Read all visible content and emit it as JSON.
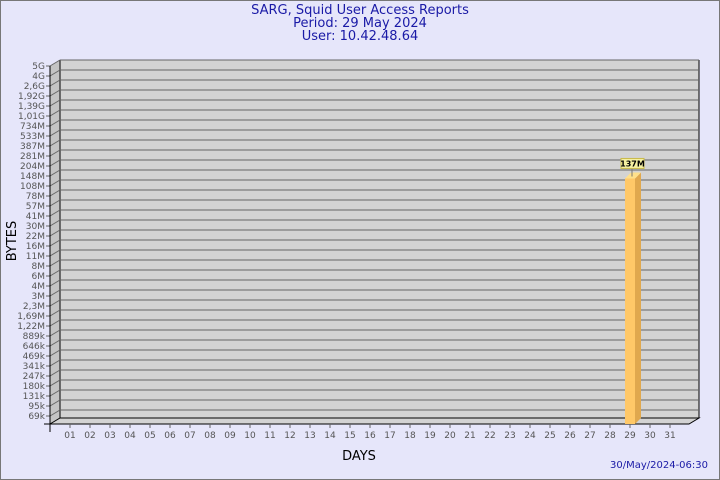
{
  "header": {
    "title": "SARG, Squid User Access Reports",
    "period": "Period: 29 May 2024",
    "user": "User: 10.42.48.64"
  },
  "footer": {
    "timestamp": "30/May/2024-06:30"
  },
  "colors": {
    "background": "#e6e6fa",
    "plot": "#d3d3d3",
    "bar": "#ffc868",
    "bar_side": "#e0a84e",
    "title": "#1a1aa6"
  },
  "chart_data": {
    "type": "bar",
    "title": "SARG, Squid User Access Reports",
    "xlabel": "DAYS",
    "ylabel": "BYTES",
    "y_scale": "log",
    "y_ticks": [
      "5G",
      "4G",
      "2,6G",
      "1,92G",
      "1,39G",
      "1,01G",
      "734M",
      "533M",
      "387M",
      "281M",
      "204M",
      "148M",
      "108M",
      "78M",
      "57M",
      "41M",
      "30M",
      "22M",
      "16M",
      "11M",
      "8M",
      "6M",
      "4M",
      "3M",
      "2,3M",
      "1,69M",
      "1,22M",
      "889k",
      "646k",
      "469k",
      "341k",
      "247k",
      "180k",
      "131k",
      "95k",
      "69k"
    ],
    "categories": [
      "01",
      "02",
      "03",
      "04",
      "05",
      "06",
      "07",
      "08",
      "09",
      "10",
      "11",
      "12",
      "13",
      "14",
      "15",
      "16",
      "17",
      "18",
      "19",
      "20",
      "21",
      "22",
      "23",
      "24",
      "25",
      "26",
      "27",
      "28",
      "29",
      "30",
      "31"
    ],
    "bars": [
      {
        "day": "29",
        "value_label": "137M",
        "value": 137000000
      }
    ],
    "grid": true
  }
}
